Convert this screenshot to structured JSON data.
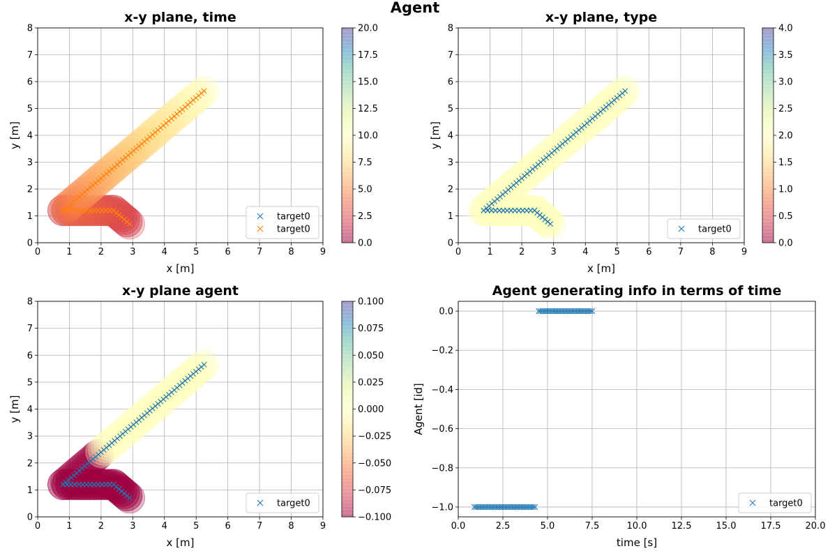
{
  "figure": {
    "suptitle": "Agent"
  },
  "colors": {
    "trail_blue": "#1f77b4",
    "trail_orange": "#ff7f0e",
    "grid": "#b0b0b0",
    "spectral": [
      "#9e0142",
      "#d53e4f",
      "#f46d43",
      "#fdae61",
      "#fee08b",
      "#ffffbf",
      "#e6f598",
      "#abdda4",
      "#66c2a5",
      "#3288bd",
      "#5e4fa2"
    ]
  },
  "chart_data": [
    {
      "id": "p1",
      "type": "scatter",
      "title": "x-y plane, time",
      "xlabel": "x [m]",
      "ylabel": "y [m]",
      "xlim": [
        0,
        9
      ],
      "ylim": [
        0,
        8
      ],
      "xticks": [
        "0",
        "1",
        "2",
        "3",
        "4",
        "5",
        "6",
        "7",
        "8",
        "9"
      ],
      "yticks": [
        "0",
        "1",
        "2",
        "3",
        "4",
        "5",
        "6",
        "7",
        "8"
      ],
      "grid": true,
      "legend": {
        "placement": "lower-right",
        "entries": [
          {
            "label": "target0",
            "color": "#1f77b4"
          },
          {
            "label": "target0",
            "color": "#ff7f0e"
          }
        ]
      },
      "colorbar": {
        "min": 0.0,
        "max": 20.0,
        "ticks": [
          "0.0",
          "2.5",
          "5.0",
          "7.5",
          "10.0",
          "12.5",
          "15.0",
          "17.5",
          "20.0"
        ]
      },
      "series": [
        {
          "marker": "x",
          "color": "#ff7f0e",
          "path": [
            [
              0.8,
              1.2
            ],
            [
              2.4,
              1.2
            ],
            [
              2.9,
              0.7
            ],
            [
              2.4,
              1.2
            ],
            [
              0.8,
              1.2
            ],
            [
              5.25,
              5.65
            ]
          ],
          "colored_by_time": [
            0.0,
            10.0
          ]
        }
      ]
    },
    {
      "id": "p2",
      "type": "scatter",
      "title": "x-y plane, type",
      "xlabel": "x [m]",
      "ylabel": "y [m]",
      "xlim": [
        0,
        9
      ],
      "ylim": [
        0,
        8
      ],
      "xticks": [
        "0",
        "1",
        "2",
        "3",
        "4",
        "5",
        "6",
        "7",
        "8",
        "9"
      ],
      "yticks": [
        "0",
        "1",
        "2",
        "3",
        "4",
        "5",
        "6",
        "7",
        "8"
      ],
      "grid": true,
      "legend": {
        "placement": "lower-right",
        "entries": [
          {
            "label": "target0",
            "color": "#1f77b4"
          }
        ]
      },
      "colorbar": {
        "min": 0.0,
        "max": 4.0,
        "ticks": [
          "0.0",
          "0.5",
          "1.0",
          "1.5",
          "2.0",
          "2.5",
          "3.0",
          "3.5",
          "4.0"
        ]
      },
      "series": [
        {
          "marker": "x",
          "color": "#1f77b4",
          "path": [
            [
              0.8,
              1.2
            ],
            [
              2.4,
              1.2
            ],
            [
              2.9,
              0.7
            ],
            [
              2.4,
              1.2
            ],
            [
              0.8,
              1.2
            ],
            [
              5.25,
              5.65
            ]
          ],
          "type_value": 2.0
        }
      ]
    },
    {
      "id": "p3",
      "type": "scatter",
      "title": "x-y plane agent",
      "xlabel": "x [m]",
      "ylabel": "y [m]",
      "xlim": [
        0,
        9
      ],
      "ylim": [
        0,
        8
      ],
      "xticks": [
        "0",
        "1",
        "2",
        "3",
        "4",
        "5",
        "6",
        "7",
        "8",
        "9"
      ],
      "yticks": [
        "0",
        "1",
        "2",
        "3",
        "4",
        "5",
        "6",
        "7",
        "8"
      ],
      "grid": true,
      "legend": {
        "placement": "lower-right",
        "entries": [
          {
            "label": "target0",
            "color": "#1f77b4"
          }
        ]
      },
      "colorbar": {
        "min": -0.1,
        "max": 0.1,
        "ticks": [
          "0.100",
          "0.075",
          "0.050",
          "0.025",
          "0.000",
          "−0.025",
          "−0.050",
          "−0.075",
          "−0.100"
        ]
      },
      "series": [
        {
          "marker": "x",
          "color": "#1f77b4",
          "path": [
            [
              0.8,
              1.2
            ],
            [
              2.4,
              1.2
            ],
            [
              2.9,
              0.7
            ],
            [
              2.4,
              1.2
            ],
            [
              0.8,
              1.2
            ],
            [
              5.25,
              5.65
            ]
          ],
          "agent_segments": [
            {
              "from": [
                0.8,
                1.2
              ],
              "to": [
                1.9,
                2.45
              ],
              "agent": -1
            },
            {
              "from": [
                1.9,
                2.45
              ],
              "to": [
                5.25,
                5.65
              ],
              "agent": 0
            }
          ]
        }
      ]
    },
    {
      "id": "p4",
      "type": "scatter",
      "title": "Agent generating info in terms of time",
      "xlabel": "time [s]",
      "ylabel": "Agent [id]",
      "xlim": [
        0,
        20
      ],
      "ylim": [
        -1.05,
        0.05
      ],
      "xticks": [
        "0.0",
        "2.5",
        "5.0",
        "7.5",
        "10.0",
        "12.5",
        "15.0",
        "17.5",
        "20.0"
      ],
      "yticks": [
        "0.0",
        "−0.2",
        "−0.4",
        "−0.6",
        "−0.8",
        "−1.0"
      ],
      "grid": true,
      "legend": {
        "placement": "lower-right",
        "entries": [
          {
            "label": "target0",
            "color": "#1f77b4"
          }
        ]
      },
      "series": [
        {
          "marker": "x",
          "color": "#1f77b4",
          "segments": [
            {
              "x_start": 0.9,
              "x_end": 4.3,
              "y": -1.0
            },
            {
              "x_start": 4.5,
              "x_end": 7.5,
              "y": 0.0
            }
          ]
        }
      ]
    }
  ]
}
